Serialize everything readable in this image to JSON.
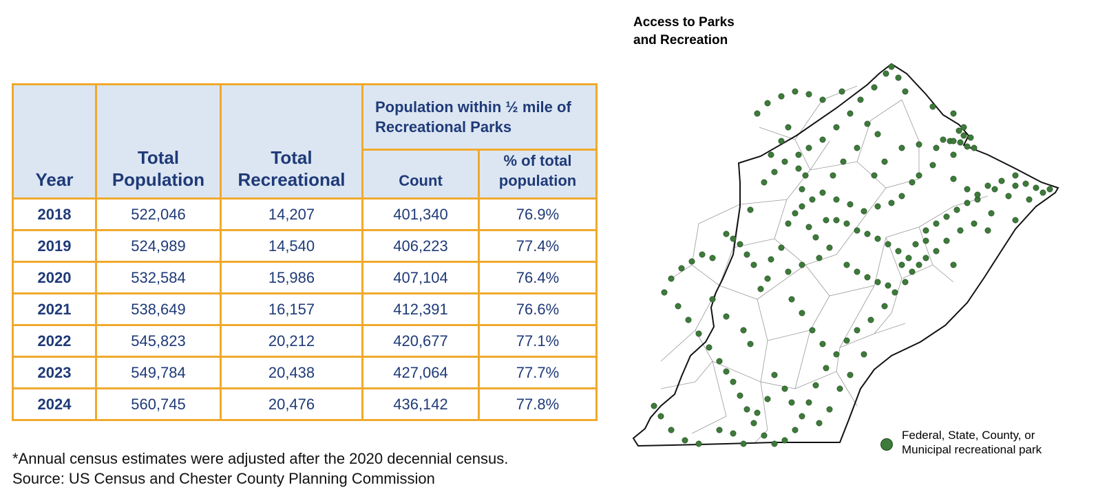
{
  "table": {
    "headers": {
      "year": "Year",
      "total_population": "Total Population",
      "total_recreational": "Total Recreational",
      "group": "Population within ½ mile of Recreational Parks",
      "count": "Count",
      "pct": "% of total population"
    },
    "rows": [
      {
        "year": "2018",
        "population": "522,046",
        "recreational": "14,207",
        "count": "401,340",
        "pct": "76.9%"
      },
      {
        "year": "2019",
        "population": "524,989",
        "recreational": "14,540",
        "count": "406,223",
        "pct": "77.4%"
      },
      {
        "year": "2020",
        "population": "532,584",
        "recreational": "15,986",
        "count": "407,104",
        "pct": "76.4%"
      },
      {
        "year": "2021",
        "population": "538,649",
        "recreational": "16,157",
        "count": "412,391",
        "pct": "76.6%"
      },
      {
        "year": "2022",
        "population": "545,823",
        "recreational": "20,212",
        "count": "420,677",
        "pct": "77.1%"
      },
      {
        "year": "2023",
        "population": "549,784",
        "recreational": "20,438",
        "count": "427,064",
        "pct": "77.7%"
      },
      {
        "year": "2024",
        "population": "560,745",
        "recreational": "20,476",
        "count": "436,142",
        "pct": "77.8%"
      }
    ]
  },
  "footnote": "*Annual census estimates were adjusted after the 2020 decennial census.",
  "source": "Source: US Census and Chester County Planning Commission",
  "map": {
    "title": "Access to Parks\nand Recreation",
    "legend_label": "Federal, State, County, or\nMunicipal recreational park",
    "park_color": "#3E7A3A"
  },
  "colors": {
    "table_border": "#F0A92C",
    "header_fill": "#DCE6F2",
    "text_navy": "#1F3A78"
  }
}
